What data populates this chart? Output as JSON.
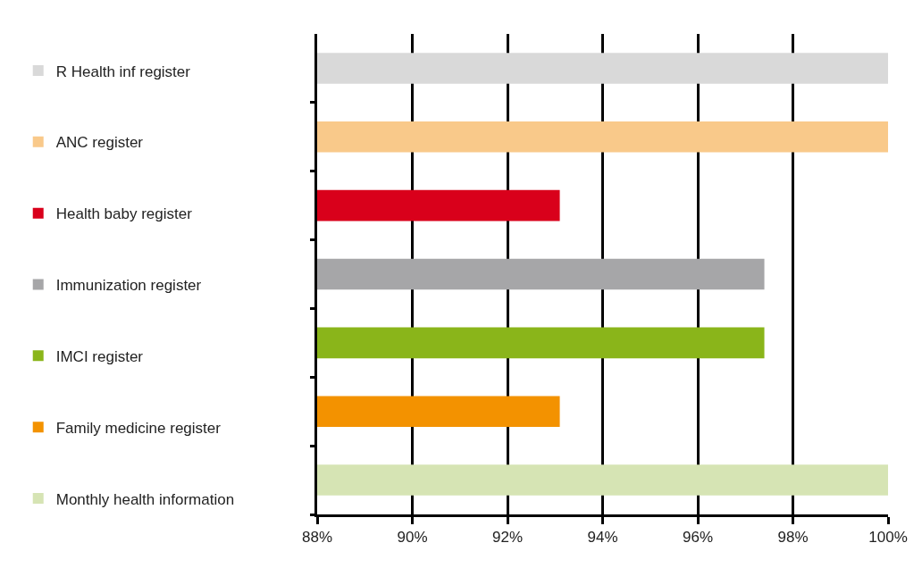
{
  "chart_data": {
    "type": "bar",
    "orientation": "horizontal",
    "categories": [
      null,
      null,
      null,
      null,
      null,
      null,
      null
    ],
    "series": [
      {
        "name": "R Health inf register",
        "color": "#d9d9d9",
        "values": [
          100,
          null,
          null,
          null,
          null,
          null,
          null
        ]
      },
      {
        "name": "ANC register",
        "color": "#f9c98a",
        "values": [
          null,
          100,
          null,
          null,
          null,
          null,
          null
        ]
      },
      {
        "name": "Health baby register",
        "color": "#d9001b",
        "values": [
          null,
          null,
          93.1,
          null,
          null,
          null,
          null
        ]
      },
      {
        "name": "Immunization register",
        "color": "#a6a6a8",
        "values": [
          null,
          null,
          null,
          97.4,
          null,
          null,
          null
        ]
      },
      {
        "name": "IMCI register",
        "color": "#8ab51a",
        "values": [
          null,
          null,
          null,
          null,
          97.4,
          null,
          null
        ]
      },
      {
        "name": "Family medicine register",
        "color": "#f39200",
        "values": [
          null,
          null,
          null,
          null,
          null,
          93.1,
          null
        ]
      },
      {
        "name": "Monthly health information",
        "color": "#d6e4b4",
        "values": [
          null,
          null,
          null,
          null,
          null,
          null,
          100
        ]
      }
    ],
    "xlim": [
      88,
      100
    ],
    "xticks": [
      {
        "value": 88,
        "label": "88%"
      },
      {
        "value": 90,
        "label": "90%"
      },
      {
        "value": 92,
        "label": "92%"
      },
      {
        "value": 94,
        "label": "94%"
      },
      {
        "value": 96,
        "label": "96%"
      },
      {
        "value": 98,
        "label": "98%"
      },
      {
        "value": 100,
        "label": "100%"
      }
    ],
    "grid": "x",
    "legend": "left",
    "tick_labels": "x"
  }
}
